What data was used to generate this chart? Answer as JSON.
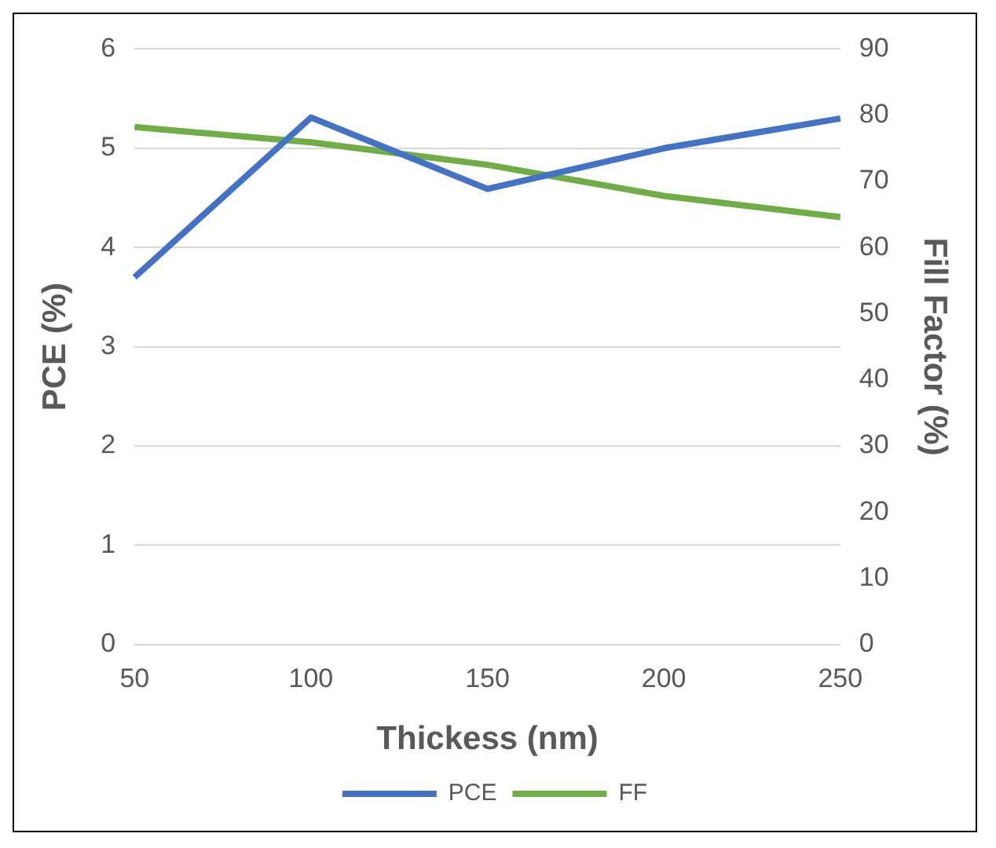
{
  "chart_data": {
    "type": "line",
    "xlabel": "Thickess (nm)",
    "ylabel": "PCE (%)",
    "y2label": "Fill Factor (%)",
    "categories": [
      "50",
      "100",
      "150",
      "200",
      "250"
    ],
    "series": [
      {
        "name": "PCE",
        "color": "#4472c4",
        "values": [
          3.7,
          5.31,
          4.59,
          5.0,
          5.3
        ]
      },
      {
        "name": "FF",
        "color": "#70ad47",
        "values": [
          78.2,
          75.9,
          72.5,
          67.8,
          64.6
        ],
        "axis": "y2"
      }
    ],
    "ylim": [
      0,
      6
    ],
    "yticks": [
      0,
      1,
      2,
      3,
      4,
      5,
      6
    ],
    "y2lim": [
      0,
      90
    ],
    "y2ticks": [
      0,
      10,
      20,
      30,
      40,
      50,
      60,
      70,
      80,
      90
    ],
    "grid": "y",
    "legend": "bottom",
    "marker": "none",
    "line_style": "solid"
  }
}
